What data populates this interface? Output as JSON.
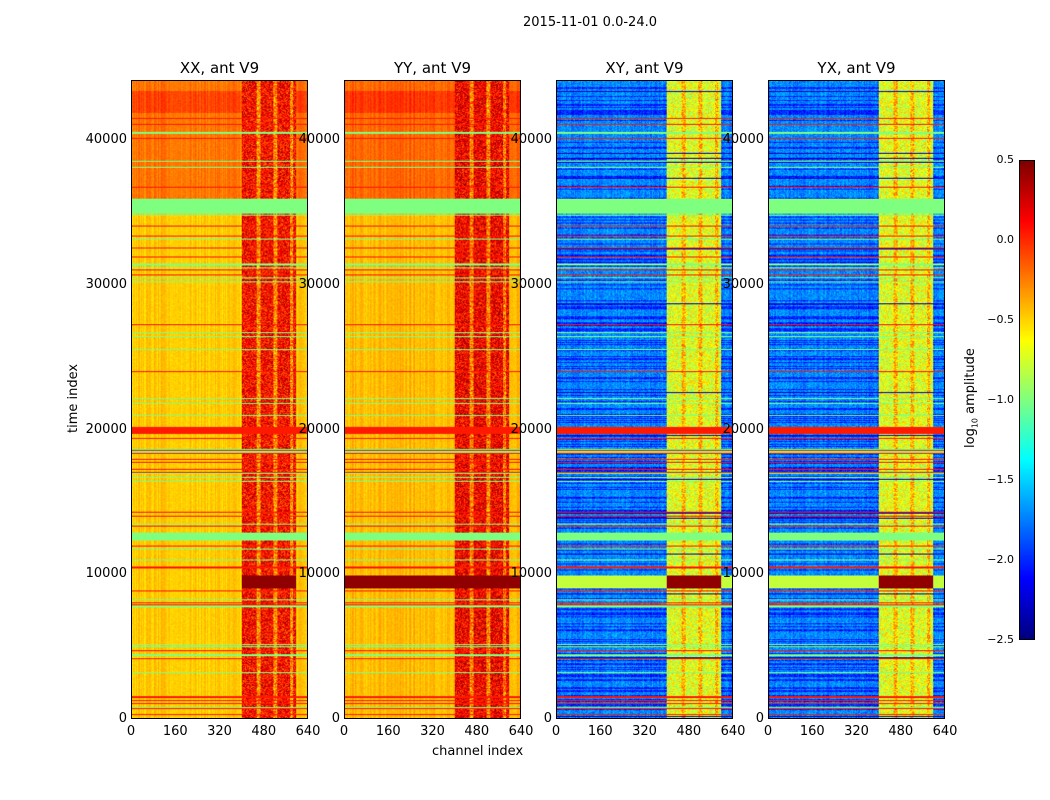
{
  "chart_data": {
    "type": "heatmap",
    "title": "2015-11-01 0.0-24.0",
    "xlabel": "channel index",
    "ylabel": "time index",
    "xlim": [
      0,
      640
    ],
    "ylim": [
      0,
      44150
    ],
    "xticks": [
      "0",
      "160",
      "320",
      "480",
      "640"
    ],
    "yticks": [
      "0",
      "10000",
      "20000",
      "30000",
      "40000"
    ],
    "panels": [
      {
        "title": "XX, ant V9",
        "base_log_amp": -0.55,
        "rfi_channels": [
          400,
          600
        ],
        "rfi_log_amp": 0.1
      },
      {
        "title": "YY, ant V9",
        "base_log_amp": -0.5,
        "rfi_channels": [
          400,
          600
        ],
        "rfi_log_amp": 0.15
      },
      {
        "title": "XY, ant V9",
        "base_log_amp": -1.8,
        "rfi_channels": [
          400,
          600
        ],
        "rfi_log_amp": -0.7
      },
      {
        "title": "YX, ant V9",
        "base_log_amp": -1.8,
        "rfi_channels": [
          400,
          600
        ],
        "rfi_log_amp": -0.7
      }
    ],
    "colorbar": {
      "label": "log10 amplitude",
      "label_main": "log",
      "label_sub": "10",
      "label_rest": " amplitude",
      "range": [
        -2.5,
        0.5
      ],
      "ticks": [
        "0.5",
        "0.0",
        "−0.5",
        "−1.0",
        "−1.5",
        "−2.0",
        "−2.5"
      ],
      "colormap": "jet"
    }
  }
}
